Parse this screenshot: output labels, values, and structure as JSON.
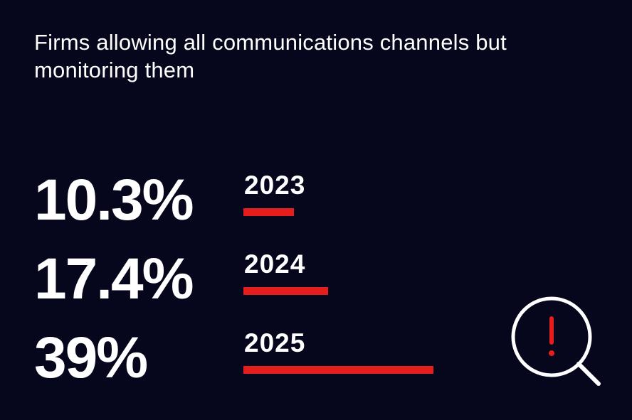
{
  "title": "Firms allowing all communications channels but monitoring them",
  "colors": {
    "background": "#06061c",
    "text": "#ffffff",
    "bar": "#e51d1d",
    "accent": "#e51d1d"
  },
  "rows": [
    {
      "value_label": "10.3%",
      "year": "2023"
    },
    {
      "value_label": "17.4%",
      "year": "2024"
    },
    {
      "value_label": "39%",
      "year": "2025"
    }
  ],
  "icon": {
    "name": "magnifier-alert-icon"
  },
  "chart_data": {
    "type": "bar",
    "title": "Firms allowing all communications channels but monitoring them",
    "categories": [
      "2023",
      "2024",
      "2025"
    ],
    "values": [
      10.3,
      17.4,
      39
    ],
    "unit": "%",
    "orientation": "horizontal",
    "grid": false,
    "legend": "none"
  }
}
